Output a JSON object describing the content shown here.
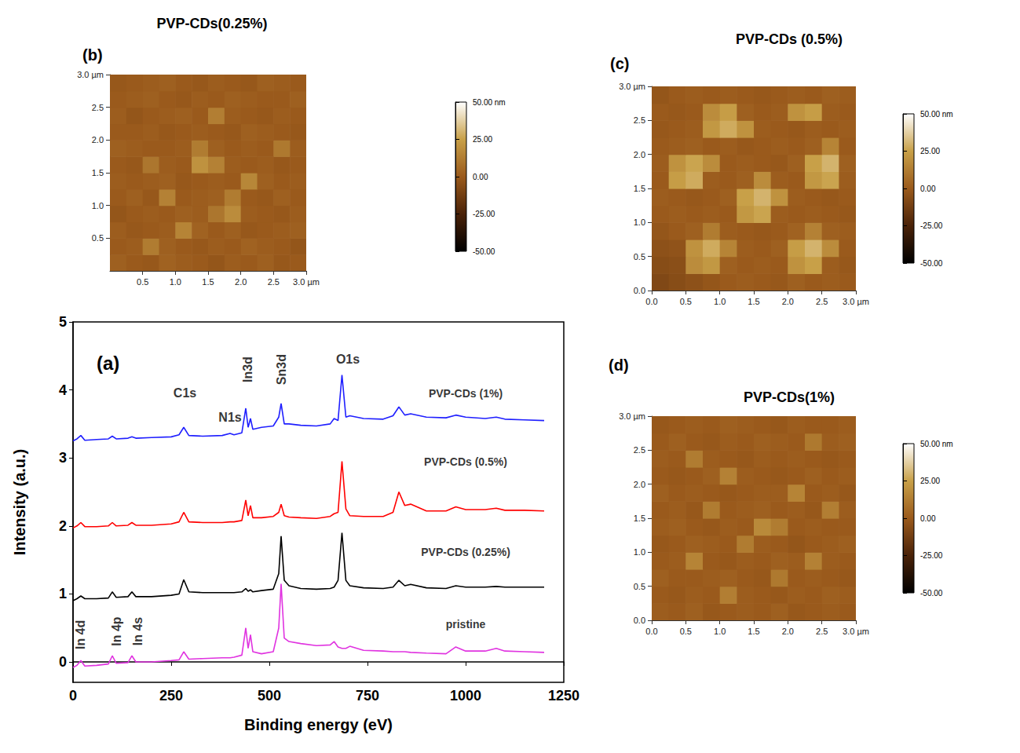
{
  "chart_data": [
    {
      "type": "line",
      "panel": "(a)",
      "x_label": "Binding energy (eV)",
      "y_label": "Intensity (a.u.)",
      "x": [
        0,
        10,
        20,
        30,
        60,
        90,
        100,
        110,
        140,
        150,
        160,
        200,
        250,
        270,
        282,
        295,
        330,
        380,
        400,
        410,
        430,
        440,
        446,
        452,
        458,
        480,
        510,
        524,
        530,
        538,
        550,
        580,
        620,
        655,
        665,
        675,
        685,
        695,
        705,
        740,
        790,
        815,
        830,
        845,
        860,
        900,
        950,
        975,
        1000,
        1050,
        1078,
        1100,
        1150,
        1200
      ],
      "series": [
        {
          "name": "pristine",
          "color": "#e033e0",
          "values": [
            -0.08,
            -0.05,
            0.02,
            -0.06,
            -0.05,
            -0.03,
            0.09,
            -0.02,
            -0.01,
            0.09,
            0.0,
            0.0,
            0.02,
            0.03,
            0.15,
            0.04,
            0.05,
            0.06,
            0.06,
            0.07,
            0.1,
            0.5,
            0.2,
            0.4,
            0.15,
            0.12,
            0.15,
            0.5,
            1.15,
            0.35,
            0.3,
            0.27,
            0.24,
            0.25,
            0.3,
            0.22,
            0.2,
            0.2,
            0.23,
            0.17,
            0.16,
            0.15,
            0.15,
            0.15,
            0.14,
            0.13,
            0.12,
            0.22,
            0.16,
            0.16,
            0.2,
            0.16,
            0.15,
            0.14
          ]
        },
        {
          "name": "PVP-CDs (0.25%)",
          "color": "#000000",
          "values": [
            0.9,
            0.93,
            0.97,
            0.93,
            0.93,
            0.94,
            1.03,
            0.95,
            0.96,
            1.03,
            0.96,
            0.96,
            0.98,
            1.0,
            1.21,
            1.03,
            1.02,
            1.02,
            1.02,
            1.02,
            1.03,
            1.08,
            1.04,
            1.06,
            1.03,
            1.05,
            1.07,
            1.3,
            1.85,
            1.2,
            1.12,
            1.08,
            1.07,
            1.08,
            1.1,
            1.2,
            1.9,
            1.2,
            1.12,
            1.09,
            1.08,
            1.1,
            1.2,
            1.12,
            1.14,
            1.09,
            1.08,
            1.12,
            1.1,
            1.1,
            1.11,
            1.1,
            1.1,
            1.1
          ]
        },
        {
          "name": "PVP-CDs (0.5%)",
          "color": "#ff0000",
          "values": [
            1.97,
            2.0,
            2.05,
            1.99,
            1.99,
            2.0,
            2.05,
            2.0,
            2.01,
            2.05,
            2.01,
            2.01,
            2.03,
            2.06,
            2.2,
            2.06,
            2.05,
            2.05,
            2.06,
            2.06,
            2.08,
            2.38,
            2.15,
            2.3,
            2.12,
            2.12,
            2.14,
            2.2,
            2.32,
            2.15,
            2.13,
            2.12,
            2.11,
            2.14,
            2.18,
            2.2,
            2.95,
            2.25,
            2.15,
            2.14,
            2.14,
            2.2,
            2.5,
            2.3,
            2.32,
            2.22,
            2.22,
            2.28,
            2.24,
            2.24,
            2.26,
            2.23,
            2.23,
            2.22
          ]
        },
        {
          "name": "PVP-CDs (1%)",
          "color": "#1f1fff",
          "values": [
            3.25,
            3.28,
            3.33,
            3.26,
            3.27,
            3.28,
            3.32,
            3.28,
            3.29,
            3.31,
            3.29,
            3.3,
            3.31,
            3.34,
            3.45,
            3.33,
            3.32,
            3.33,
            3.36,
            3.34,
            3.37,
            3.73,
            3.45,
            3.58,
            3.42,
            3.45,
            3.47,
            3.6,
            3.8,
            3.5,
            3.5,
            3.48,
            3.47,
            3.5,
            3.58,
            3.55,
            4.22,
            3.6,
            3.62,
            3.58,
            3.57,
            3.62,
            3.75,
            3.63,
            3.65,
            3.6,
            3.59,
            3.63,
            3.6,
            3.58,
            3.6,
            3.57,
            3.56,
            3.55
          ]
        }
      ],
      "xlim": [
        0,
        1250
      ],
      "xticks": [
        0,
        250,
        500,
        750,
        1000,
        1250
      ],
      "ylim": [
        -0.3,
        5
      ],
      "yticks": [
        0,
        1,
        2,
        3,
        4,
        5
      ],
      "grid": false,
      "annotations": [
        {
          "text": "C1s",
          "x": 285,
          "y": 3.95
        },
        {
          "text": "N1s",
          "x": 400,
          "y": 3.6
        },
        {
          "text": "In3d",
          "x": 445,
          "y": 4.3
        },
        {
          "text": "Sn3d",
          "x": 530,
          "y": 4.3
        },
        {
          "text": "O1s",
          "x": 700,
          "y": 4.45
        },
        {
          "text": "PVP-CDs (1%)",
          "x": 1000,
          "y": 3.95
        },
        {
          "text": "PVP-CDs (0.5%)",
          "x": 1000,
          "y": 2.95
        },
        {
          "text": "PVP-CDs (0.25%)",
          "x": 1000,
          "y": 1.62
        },
        {
          "text": "pristine",
          "x": 1000,
          "y": 0.55
        },
        {
          "text": "In 4d",
          "x": 18,
          "y": 0.4
        },
        {
          "text": "In 4p",
          "x": 110,
          "y": 0.45
        },
        {
          "text": "In 4s",
          "x": 164,
          "y": 0.45
        }
      ]
    },
    {
      "type": "heatmap",
      "panel": "(b)",
      "title": "PVP-CDs(0.25%)",
      "x": [
        0.125,
        0.375,
        0.625,
        0.875,
        1.125,
        1.375,
        1.625,
        1.875,
        2.125,
        2.375,
        2.625,
        2.875
      ],
      "y": [
        0.125,
        0.375,
        0.625,
        0.875,
        1.125,
        1.375,
        1.625,
        1.875,
        2.125,
        2.375,
        2.625,
        2.875
      ],
      "cells": [
        [
          2,
          0,
          -1,
          3,
          1,
          0,
          -2,
          1,
          0,
          2,
          -1,
          0
        ],
        [
          0,
          1,
          12,
          2,
          0,
          -1,
          1,
          0,
          3,
          1,
          0,
          -2
        ],
        [
          1,
          -1,
          0,
          1,
          15,
          3,
          0,
          2,
          -1,
          0,
          1,
          2
        ],
        [
          -2,
          0,
          1,
          0,
          2,
          1,
          10,
          18,
          1,
          0,
          -1,
          1
        ],
        [
          0,
          2,
          -1,
          14,
          0,
          1,
          2,
          12,
          0,
          -1,
          2,
          0
        ],
        [
          1,
          0,
          1,
          2,
          -1,
          0,
          1,
          0,
          16,
          2,
          0,
          1
        ],
        [
          0,
          -1,
          10,
          1,
          0,
          20,
          14,
          1,
          0,
          1,
          -1,
          0
        ],
        [
          2,
          1,
          0,
          0,
          1,
          12,
          2,
          0,
          1,
          0,
          11,
          1
        ],
        [
          0,
          0,
          1,
          -1,
          0,
          1,
          0,
          -1,
          2,
          1,
          0,
          -1
        ],
        [
          1,
          -2,
          0,
          1,
          2,
          0,
          13,
          1,
          0,
          -1,
          1,
          0
        ],
        [
          0,
          1,
          2,
          0,
          -1,
          1,
          0,
          2,
          1,
          0,
          0,
          2
        ],
        [
          -1,
          0,
          1,
          2,
          0,
          -1,
          1,
          0,
          -1,
          2,
          1,
          0
        ]
      ],
      "xlim": [
        0,
        3
      ],
      "xticks": [
        {
          "value": 0.5,
          "label": "0.5"
        },
        {
          "value": 1,
          "label": "1.0"
        },
        {
          "value": 1.5,
          "label": "1.5"
        },
        {
          "value": 2,
          "label": "2.0"
        },
        {
          "value": 2.5,
          "label": "2.5"
        },
        {
          "value": 3,
          "label": "3.0 µm"
        }
      ],
      "ylim": [
        0,
        3
      ],
      "yticks": [
        {
          "value": 0.5,
          "label": "0.5"
        },
        {
          "value": 1,
          "label": "1.0"
        },
        {
          "value": 1.5,
          "label": "1.5"
        },
        {
          "value": 2,
          "label": "2.0"
        },
        {
          "value": 2.5,
          "label": "2.5"
        },
        {
          "value": 3,
          "label": "3.0 µm"
        }
      ],
      "colorbar": {
        "range": [
          -50,
          50
        ],
        "ticks": [
          {
            "value": 50,
            "label": "50.00 nm"
          },
          {
            "value": 25,
            "label": "25.00"
          },
          {
            "value": 0,
            "label": "0.00"
          },
          {
            "value": -25,
            "label": "-25.00"
          },
          {
            "value": -50,
            "label": "-50.00"
          }
        ]
      }
    },
    {
      "type": "heatmap",
      "panel": "(c)",
      "title": "PVP-CDs (0.5%)",
      "x": [
        0.125,
        0.375,
        0.625,
        0.875,
        1.125,
        1.375,
        1.625,
        1.875,
        2.125,
        2.375,
        2.625,
        2.875
      ],
      "y": [
        0.125,
        0.375,
        0.625,
        0.875,
        1.125,
        1.375,
        1.625,
        1.875,
        2.125,
        2.375,
        2.625,
        2.875
      ],
      "cells": [
        [
          -8,
          -6,
          -4,
          -2,
          0,
          1,
          0,
          -1,
          2,
          0,
          1,
          0
        ],
        [
          -6,
          -5,
          18,
          22,
          2,
          0,
          1,
          0,
          20,
          25,
          1,
          -1
        ],
        [
          -4,
          -3,
          20,
          28,
          15,
          1,
          0,
          2,
          24,
          30,
          18,
          0
        ],
        [
          -2,
          0,
          2,
          12,
          1,
          0,
          -1,
          0,
          3,
          14,
          2,
          1
        ],
        [
          0,
          1,
          0,
          1,
          0,
          22,
          26,
          1,
          0,
          1,
          0,
          -1
        ],
        [
          1,
          0,
          -1,
          0,
          2,
          25,
          30,
          20,
          1,
          0,
          -1,
          0
        ],
        [
          0,
          24,
          28,
          1,
          0,
          2,
          18,
          1,
          0,
          22,
          26,
          1
        ],
        [
          1,
          20,
          26,
          18,
          0,
          1,
          0,
          -1,
          2,
          25,
          30,
          2
        ],
        [
          0,
          1,
          2,
          0,
          1,
          -1,
          0,
          1,
          0,
          2,
          15,
          0
        ],
        [
          -1,
          0,
          1,
          22,
          28,
          20,
          1,
          0,
          -1,
          1,
          0,
          1
        ],
        [
          0,
          -1,
          0,
          18,
          24,
          2,
          0,
          1,
          20,
          24,
          1,
          0
        ],
        [
          -2,
          0,
          1,
          0,
          1,
          0,
          -1,
          0,
          1,
          0,
          2,
          1
        ]
      ],
      "xlim": [
        0,
        3
      ],
      "xticks": [
        {
          "value": 0,
          "label": "0.0"
        },
        {
          "value": 0.5,
          "label": "0.5"
        },
        {
          "value": 1,
          "label": "1.0"
        },
        {
          "value": 1.5,
          "label": "1.5"
        },
        {
          "value": 2,
          "label": "2.0"
        },
        {
          "value": 2.5,
          "label": "2.5"
        },
        {
          "value": 3,
          "label": "3.0 µm"
        }
      ],
      "ylim": [
        0,
        3
      ],
      "yticks": [
        {
          "value": 0,
          "label": "0.0"
        },
        {
          "value": 0.5,
          "label": "0.5"
        },
        {
          "value": 1,
          "label": "1.0"
        },
        {
          "value": 1.5,
          "label": "1.5"
        },
        {
          "value": 2,
          "label": "2.0"
        },
        {
          "value": 2.5,
          "label": "2.5"
        },
        {
          "value": 3,
          "label": "3.0 µm"
        }
      ],
      "colorbar": {
        "range": [
          -50,
          50
        ],
        "ticks": [
          {
            "value": 50,
            "label": "50.00 nm"
          },
          {
            "value": 25,
            "label": "25.00"
          },
          {
            "value": 0,
            "label": "0.00"
          },
          {
            "value": -25,
            "label": "-25.00"
          },
          {
            "value": -50,
            "label": "-50.00"
          }
        ]
      }
    },
    {
      "type": "heatmap",
      "panel": "(d)",
      "title": "PVP-CDs(1%)",
      "x": [
        0.125,
        0.375,
        0.625,
        0.875,
        1.125,
        1.375,
        1.625,
        1.875,
        2.125,
        2.375,
        2.625,
        2.875
      ],
      "y": [
        0.125,
        0.375,
        0.625,
        0.875,
        1.125,
        1.375,
        1.625,
        1.875,
        2.125,
        2.375,
        2.625,
        2.875
      ],
      "cells": [
        [
          1,
          0,
          2,
          -1,
          0,
          1,
          0,
          2,
          -1,
          0,
          1,
          0
        ],
        [
          0,
          -1,
          1,
          0,
          13,
          1,
          0,
          -1,
          1,
          0,
          2,
          1
        ],
        [
          2,
          0,
          0,
          1,
          2,
          0,
          -1,
          11,
          0,
          1,
          0,
          -1
        ],
        [
          0,
          1,
          15,
          0,
          -1,
          1,
          0,
          2,
          1,
          14,
          1,
          0
        ],
        [
          -1,
          0,
          2,
          1,
          0,
          12,
          1,
          0,
          -2,
          0,
          1,
          2
        ],
        [
          1,
          2,
          0,
          -1,
          1,
          0,
          17,
          12,
          0,
          1,
          0,
          0
        ],
        [
          0,
          1,
          -1,
          12,
          0,
          1,
          2,
          0,
          1,
          -1,
          13,
          1
        ],
        [
          2,
          0,
          1,
          0,
          -1,
          0,
          1,
          1,
          15,
          0,
          1,
          -1
        ],
        [
          0,
          -1,
          0,
          2,
          14,
          1,
          0,
          -1,
          0,
          2,
          0,
          1
        ],
        [
          1,
          0,
          12,
          1,
          0,
          -1,
          1,
          0,
          1,
          0,
          -1,
          0
        ],
        [
          0,
          2,
          0,
          -1,
          1,
          0,
          2,
          1,
          0,
          11,
          1,
          2
        ],
        [
          -1,
          0,
          1,
          0,
          2,
          1,
          0,
          -1,
          1,
          0,
          0,
          1
        ]
      ],
      "xlim": [
        0,
        3
      ],
      "xticks": [
        {
          "value": 0,
          "label": "0.0"
        },
        {
          "value": 0.5,
          "label": "0.5"
        },
        {
          "value": 1,
          "label": "1.0"
        },
        {
          "value": 1.5,
          "label": "1.5"
        },
        {
          "value": 2,
          "label": "2.0"
        },
        {
          "value": 2.5,
          "label": "2.5"
        },
        {
          "value": 3,
          "label": "3.0 µm"
        }
      ],
      "ylim": [
        0,
        3
      ],
      "yticks": [
        {
          "value": 0,
          "label": "0.0"
        },
        {
          "value": 0.5,
          "label": "0.5"
        },
        {
          "value": 1,
          "label": "1.0"
        },
        {
          "value": 1.5,
          "label": "1.5"
        },
        {
          "value": 2,
          "label": "2.0"
        },
        {
          "value": 2.5,
          "label": "2.5"
        },
        {
          "value": 3,
          "label": "3.0 µm"
        }
      ],
      "colorbar": {
        "range": [
          -50,
          50
        ],
        "ticks": [
          {
            "value": 50,
            "label": "50.00 nm"
          },
          {
            "value": 25,
            "label": "25.00"
          },
          {
            "value": 0,
            "label": "0.00"
          },
          {
            "value": -25,
            "label": "-25.00"
          },
          {
            "value": -50,
            "label": "-50.00"
          }
        ]
      }
    }
  ]
}
